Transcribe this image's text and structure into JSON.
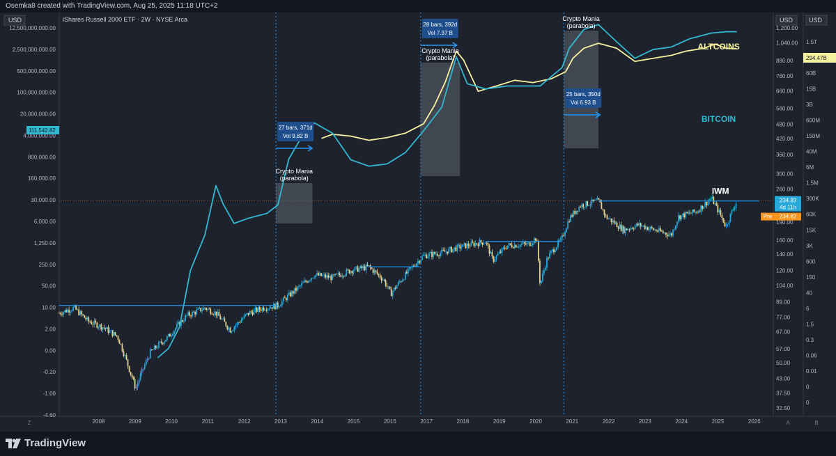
{
  "header": {
    "attribution": "Osemka8 created with TradingView.com, Aug 25, 2025 11:18 UTC+2"
  },
  "footer": {
    "brand": "TradingView"
  },
  "colors": {
    "background": "#1e222d",
    "iwm_line": "#26a8d9",
    "altcoins": "#f7f2a0",
    "bitcoin": "#33b8d1",
    "candle_up": "#26a8d9",
    "candle_down": "#e6d38a",
    "highlight_box": "#5d6670",
    "pre_badge": "#f7931a"
  },
  "chart_data": {
    "type": "line",
    "title": "iShares Russell 2000 ETF · 2W · NYSE Arca",
    "currency_labels": {
      "left": "USD",
      "right_a": "USD",
      "right_b": "USD"
    },
    "pane_labels": {
      "left": "Z",
      "right_a": "A",
      "right_b": "B"
    },
    "x_ticks": [
      "2008",
      "2009",
      "2010",
      "2011",
      "2012",
      "2013",
      "2014",
      "2015",
      "2016",
      "2017",
      "2018",
      "2019",
      "2020",
      "2021",
      "2022",
      "2023",
      "2024",
      "2025",
      "2026"
    ],
    "left_axis_ticks": [
      "12,500,000,000.00",
      "2,500,000,000.00",
      "500,000,000.00",
      "100,000,000.00",
      "20,000,000.00",
      "4,000,000.00",
      "800,000.00",
      "160,000.00",
      "30,000.00",
      "6,000.00",
      "1,250.00",
      "250.00",
      "50.00",
      "10.00",
      "2.00",
      "0.00",
      "-0.20",
      "-1.00",
      "-4.60"
    ],
    "right_axis_a_ticks": [
      "1,200.00",
      "1,040.00",
      "880.00",
      "760.00",
      "660.00",
      "560.00",
      "480.00",
      "420.00",
      "360.00",
      "300.00",
      "260.00",
      "220.00",
      "190.00",
      "160.00",
      "140.00",
      "120.00",
      "104.00",
      "89.00",
      "77.00",
      "67.00",
      "57.00",
      "50.00",
      "43.00",
      "37.50",
      "32.50"
    ],
    "right_axis_b_ticks": [
      "1.5T",
      "600B",
      "60B",
      "15B",
      "3B",
      "600M",
      "150M",
      "40M",
      "6M",
      "1.5M",
      "300K",
      "60K",
      "15K",
      "3K",
      "600",
      "150",
      "40",
      "6",
      "1.5",
      "0.3",
      "0.06",
      "0.01",
      "0",
      "0"
    ],
    "badges": {
      "altcoins_value": "294.47B",
      "bitcoin_value": "111,542.82",
      "iwm_price": "234.83",
      "iwm_countdown": "4d 11h",
      "pre_label": "Pre",
      "pre_value": "234.82"
    },
    "series": [
      {
        "name": "IWM",
        "axis": "right_a",
        "x": [
          2007.0,
          2007.4,
          2007.8,
          2008.2,
          2008.6,
          2008.9,
          2009.1,
          2009.5,
          2010.0,
          2010.5,
          2011.0,
          2011.3,
          2011.7,
          2012.2,
          2012.6,
          2013.0,
          2013.5,
          2014.0,
          2014.5,
          2015.0,
          2015.5,
          2015.9,
          2016.1,
          2016.5,
          2017.0,
          2017.5,
          2018.0,
          2018.7,
          2018.9,
          2019.3,
          2019.9,
          2020.1,
          2020.2,
          2020.4,
          2020.8,
          2021.0,
          2021.3,
          2021.8,
          2022.0,
          2022.5,
          2022.9,
          2023.3,
          2023.8,
          2024.0,
          2024.5,
          2024.9,
          2025.3,
          2025.6
        ],
        "y": [
          80,
          84,
          74,
          70,
          64,
          48,
          39,
          55,
          64,
          78,
          84,
          80,
          68,
          80,
          84,
          86,
          100,
          115,
          112,
          120,
          124,
          110,
          96,
          115,
          138,
          142,
          150,
          158,
          132,
          152,
          154,
          164,
          104,
          135,
          162,
          196,
          222,
          232,
          200,
          176,
          185,
          177,
          168,
          200,
          210,
          238,
          182,
          232
        ]
      },
      {
        "name": "ALTCOINS",
        "axis": "right_b",
        "x": [
          2014.2,
          2014.5,
          2015.0,
          2015.5,
          2016.0,
          2016.5,
          2017.0,
          2017.3,
          2017.6,
          2017.9,
          2018.1,
          2018.5,
          2019.0,
          2019.5,
          2020.0,
          2020.5,
          2020.9,
          2021.1,
          2021.4,
          2021.8,
          2022.3,
          2022.8,
          2023.3,
          2023.8,
          2024.2,
          2024.7,
          2025.0,
          2025.3,
          2025.6
        ],
        "y": [
          120000000.0,
          180000000.0,
          150000000.0,
          100000000.0,
          130000000.0,
          200000000.0,
          500000000.0,
          3000000000.0,
          30000000000.0,
          600000000000.0,
          250000000000.0,
          12000000000.0,
          20000000000.0,
          35000000000.0,
          28000000000.0,
          40000000000.0,
          80000000000.0,
          300000000000.0,
          800000000000.0,
          1300000000000.0,
          800000000000.0,
          220000000000.0,
          300000000000.0,
          400000000000.0,
          600000000000.0,
          800000000000.0,
          1200000000000.0,
          800000000000.0,
          750000000000.0
        ]
      },
      {
        "name": "BITCOIN",
        "axis": "right_b",
        "x": [
          2009.7,
          2010.0,
          2010.3,
          2010.6,
          2011.0,
          2011.3,
          2011.5,
          2011.8,
          2012.2,
          2012.7,
          2013.0,
          2013.3,
          2013.6,
          2014.0,
          2014.5,
          2015.0,
          2015.5,
          2016.0,
          2016.5,
          2017.0,
          2017.5,
          2017.9,
          2018.2,
          2018.7,
          2019.3,
          2019.8,
          2020.2,
          2020.8,
          2021.0,
          2021.4,
          2021.8,
          2022.3,
          2022.8,
          2023.3,
          2023.8,
          2024.3,
          2024.9,
          2025.3,
          2025.6
        ],
        "y": [
          0.06,
          0.15,
          1.2,
          300,
          10000,
          1200000.0,
          200000.0,
          30000.0,
          50000.0,
          80000.0,
          180000.0,
          16000000.0,
          100000000.0,
          550000000.0,
          200000000.0,
          15000000.0,
          8000000.0,
          10000000.0,
          30000000.0,
          250000000.0,
          2500000000.0,
          350000000000.0,
          25000000000.0,
          15000000000.0,
          20000000000.0,
          20000000000.0,
          20000000000.0,
          120000000000.0,
          800000000000.0,
          5000000000000.0,
          8000000000000.0,
          1500000000000.0,
          300000000000.0,
          700000000000.0,
          900000000000.0,
          2000000000000.0,
          3500000000000.0,
          4000000000000.0,
          4000000000000.0
        ]
      }
    ],
    "annotations": [
      {
        "type": "vline",
        "x": 2012.95
      },
      {
        "type": "vline",
        "x": 2016.92
      },
      {
        "type": "vline",
        "x": 2020.85
      },
      {
        "type": "box",
        "label": "Crypto Mania\n(parabola)",
        "x0": 2012.95,
        "x1": 2013.95
      },
      {
        "type": "box",
        "label": "Crypto Mania\n(parabola)",
        "x0": 2016.92,
        "x1": 2018.0
      },
      {
        "type": "box",
        "label": "Crypto Mania\n(parabola)",
        "x0": 2020.85,
        "x1": 2021.8
      },
      {
        "type": "measure",
        "line1": "27 bars, 371d",
        "line2": "Vol 9.82 B",
        "x": 2012.95
      },
      {
        "type": "measure",
        "line1": "28 bars, 392d",
        "line2": "Vol 7.37 B",
        "x": 2016.92
      },
      {
        "type": "measure",
        "line1": "25 bars, 350d",
        "line2": "Vol 6.93 B",
        "x": 2020.85
      },
      {
        "type": "hline",
        "label": "IWM",
        "y": 232,
        "x0": 2021.8,
        "x1": 2026.2
      },
      {
        "type": "hline",
        "y": 86,
        "x0": 2007.0,
        "x1": 2013.0
      },
      {
        "type": "hline",
        "y": 124,
        "x0": 2015.5,
        "x1": 2016.9
      },
      {
        "type": "hline",
        "y": 158,
        "x0": 2018.7,
        "x1": 2020.8
      }
    ],
    "xlabel": "",
    "ylabel": "",
    "grid": false,
    "legend": "none"
  }
}
